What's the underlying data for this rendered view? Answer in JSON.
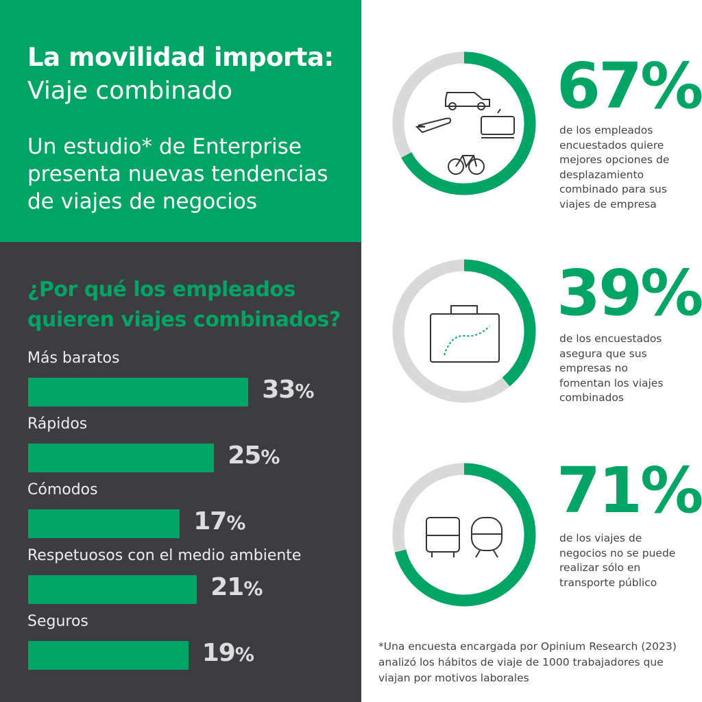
{
  "header": {
    "title_bold": "La movilidad importa:",
    "title_light": "Viaje combinado",
    "subtitle": "Un estudio* de Enterprise presenta nuevas tendencias de viajes de negocios"
  },
  "colors": {
    "green": "#00a465",
    "dark": "#3d3c40",
    "ring_gray": "#d9d9d9"
  },
  "chart_data": [
    {
      "type": "bar",
      "title": "¿Por qué los empleados quieren viajes combinados?",
      "categories": [
        "Más baratos",
        "Rápidos",
        "Cómodos",
        "Respetuosos con el medio ambiente",
        "Seguros"
      ],
      "values": [
        33,
        25,
        17,
        21,
        19
      ],
      "labels": [
        "33%",
        "25%",
        "17%",
        "21%",
        "19%"
      ],
      "unit": "%"
    },
    {
      "type": "pie",
      "subtype": "donut",
      "values": [
        67
      ],
      "label": "67%",
      "description": "de los empleados encuestados quiere mejores opciones de desplazamiento combinado para sus viajes de empresa",
      "icons": [
        "car-icon",
        "plane-icon",
        "tram-icon",
        "bicycle-icon"
      ]
    },
    {
      "type": "pie",
      "subtype": "donut",
      "values": [
        39
      ],
      "label": "39%",
      "description": "de los encuestados asegura que sus empresas no fomentan los viajes combinados",
      "icons": [
        "suitcase-route-icon"
      ]
    },
    {
      "type": "pie",
      "subtype": "donut",
      "values": [
        71
      ],
      "label": "71%",
      "description": "de los viajes de negocios no se puede realizar sólo en transporte público",
      "icons": [
        "bus-icon",
        "train-icon"
      ]
    }
  ],
  "footnote": "*Una encuesta encargada por Opinium Research (2023) analizó los hábitos de viaje de 1000 trabajadores que viajan por motivos laborales"
}
